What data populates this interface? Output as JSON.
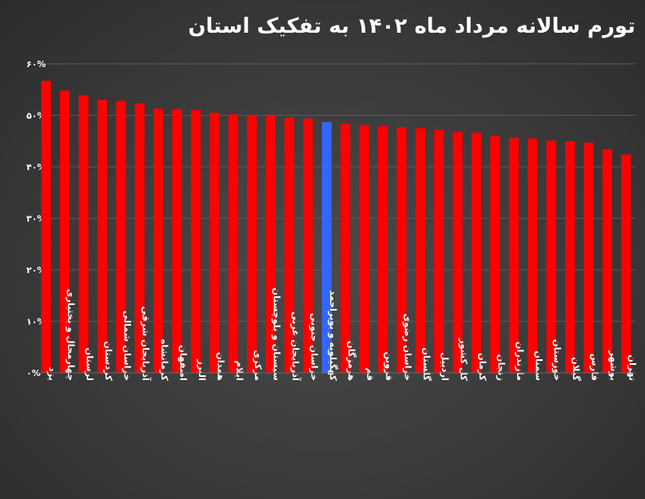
{
  "chart_data": {
    "type": "bar",
    "title": "تورم سالانه مرداد ماه ۱۴۰۲ به تفکیک استان",
    "xlabel": "",
    "ylabel": "",
    "ylim": [
      0,
      60
    ],
    "y_ticks": [
      0,
      10,
      20,
      30,
      40,
      50,
      60
    ],
    "y_tick_labels": [
      "۰%",
      "۱۰%",
      "۲۰%",
      "۳۰%",
      "۴۰%",
      "۵۰%",
      "۶۰%"
    ],
    "grid": true,
    "categories": [
      "یزد",
      "چهارمحال و بختیاری",
      "لرستان",
      "کردستان",
      "خراسان شمالی",
      "آذربایجان شرقی",
      "کرمانشاه",
      "اصفهان",
      "البرز",
      "همدان",
      "ایلام",
      "مرکزی",
      "سیستان و بلوچستان",
      "آذربایجان غربی",
      "خراسان جنوبی",
      "کهگیلویه و بویراحمد",
      "هرمزگان",
      "قم",
      "قزوین",
      "خراسان رضوی",
      "گلستان",
      "اردبیل",
      "کل کشور",
      "کرمان",
      "زنجان",
      "مازندران",
      "سمنان",
      "خوزستان",
      "گیلان",
      "فارس",
      "بوشهر",
      "تهران"
    ],
    "values": [
      56.7,
      54.8,
      53.9,
      53.0,
      52.8,
      52.3,
      51.3,
      51.2,
      51.0,
      50.5,
      50.2,
      50.1,
      49.9,
      49.6,
      49.4,
      48.7,
      48.4,
      48.1,
      47.9,
      47.7,
      47.5,
      47.2,
      46.8,
      46.6,
      46.0,
      45.6,
      45.5,
      45.1,
      45.0,
      44.7,
      43.4,
      42.4
    ],
    "colors": {
      "default": "#ff0000",
      "highlight": "#3366ff",
      "highlight_category": "کهگیلویه و بویراحمد"
    }
  }
}
